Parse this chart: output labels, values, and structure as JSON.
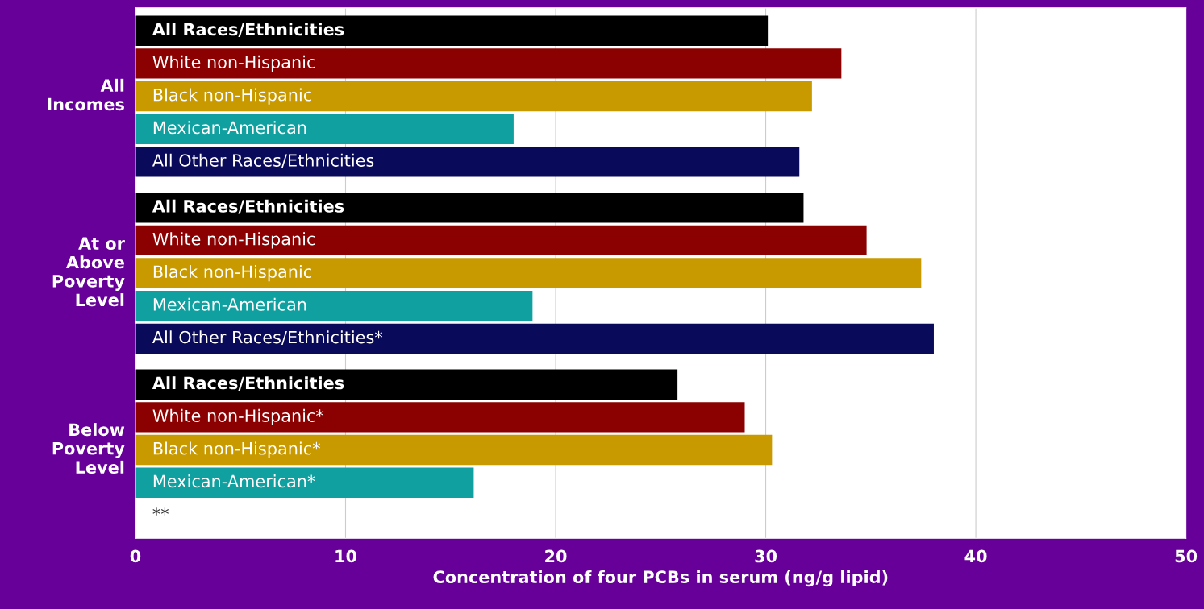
{
  "chart_data": {
    "type": "bar",
    "orientation": "horizontal",
    "xlabel": "Concentration of four PCBs in serum (ng/g lipid)",
    "categories": [
      "All Races/Ethnicities",
      "White non-Hispanic",
      "Black non-Hispanic",
      "Mexican-American",
      "All Other Races/Ethnicities",
      "All Races/Ethnicities",
      "White non-Hispanic",
      "Black non-Hispanic",
      "Mexican-American",
      "All Other Races/Ethnicities*",
      "All Races/Ethnicities",
      "White non-Hispanic*",
      "Black non-Hispanic*",
      "Mexican-American*",
      "**"
    ],
    "values": [
      30.1,
      33.6,
      32.2,
      18.0,
      31.6,
      31.8,
      34.8,
      37.4,
      18.9,
      38.0,
      25.8,
      29.0,
      30.3,
      16.1,
      null
    ],
    "colors": [
      "#000000",
      "#8b0000",
      "#c99a00",
      "#10a0a0",
      "#0a0a5a",
      "#000000",
      "#8b0000",
      "#c99a00",
      "#10a0a0",
      "#0a0a5a",
      "#000000",
      "#8b0000",
      "#c99a00",
      "#10a0a0",
      "#0a0a5a"
    ],
    "annotations": [
      "All\nIncomes",
      "At or\nAbove\nPoverty\nLevel",
      "Below\nPoverty\nLevel"
    ],
    "xlim": [
      0,
      50
    ],
    "xticks": [
      0,
      10,
      20,
      30,
      40,
      50
    ],
    "grid": "x",
    "legend": false
  }
}
